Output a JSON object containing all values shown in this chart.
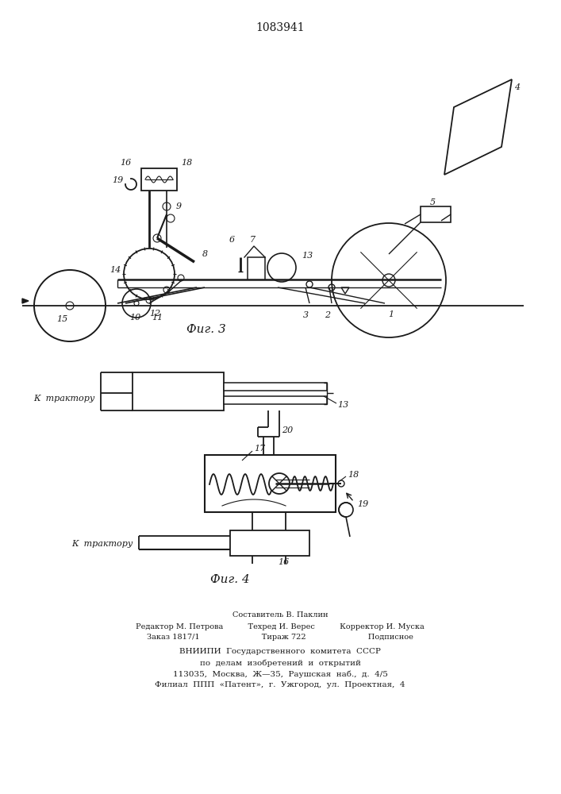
{
  "patent_number": "1083941",
  "bg_color": "#ffffff",
  "line_color": "#1a1a1a",
  "fig3_caption": "Фиг. 3",
  "fig4_caption": "Фиг. 4"
}
